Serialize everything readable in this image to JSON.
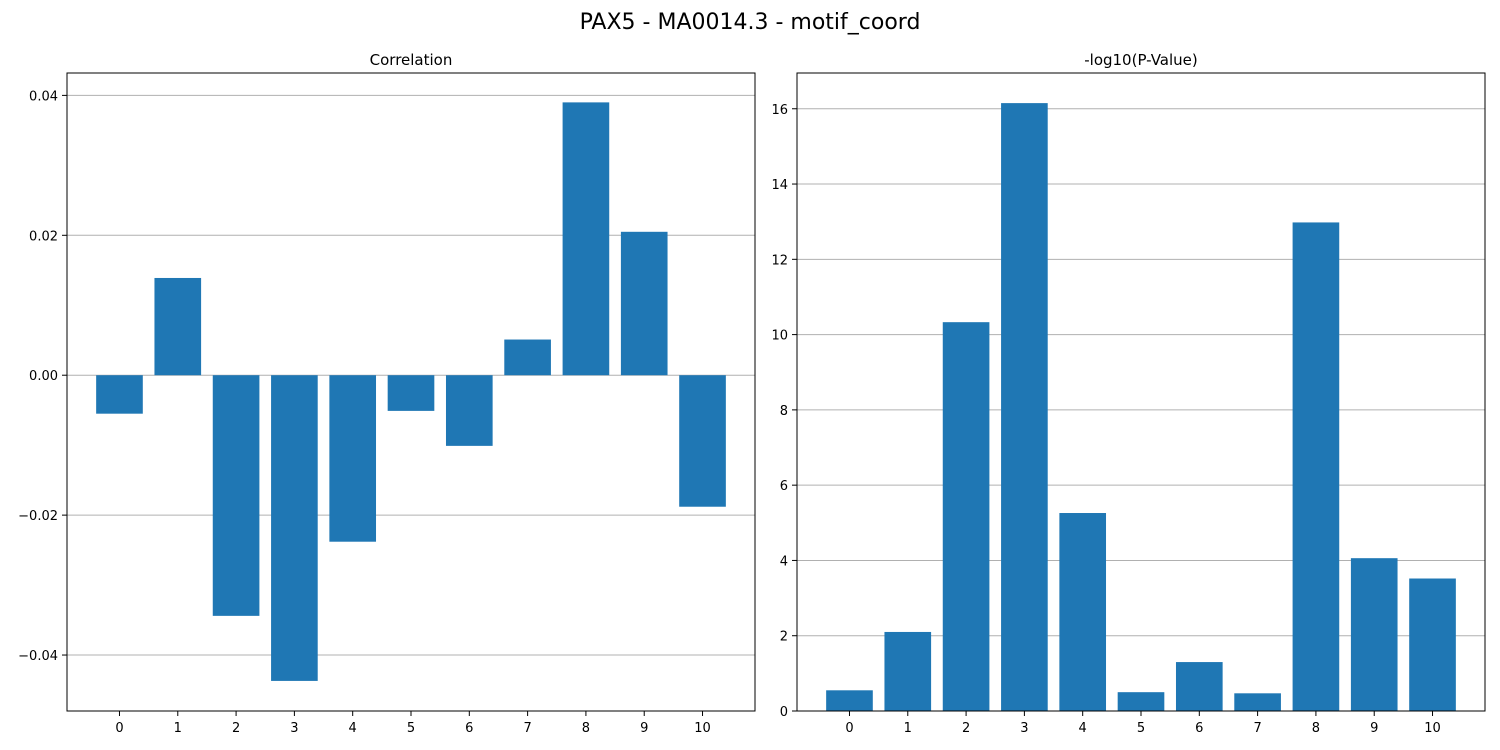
{
  "figure": {
    "title": "PAX5 - MA0014.3 - motif_coord"
  },
  "colors": {
    "bar": "#1f77b4",
    "grid": "#b0b0b0",
    "axis": "#000000"
  },
  "chart_data": [
    {
      "type": "bar",
      "title": "Correlation",
      "categories": [
        "0",
        "1",
        "2",
        "3",
        "4",
        "5",
        "6",
        "7",
        "8",
        "9",
        "10"
      ],
      "values": [
        -0.0055,
        0.0139,
        -0.0344,
        -0.0437,
        -0.0238,
        -0.0051,
        -0.0101,
        0.0051,
        0.039,
        0.0205,
        -0.0188
      ],
      "ylim": [
        -0.048,
        0.0432
      ],
      "yticks": [
        -0.04,
        -0.02,
        0.0,
        0.02,
        0.04
      ],
      "ytick_labels": [
        "−0.04",
        "−0.02",
        "0.00",
        "0.02",
        "0.04"
      ],
      "grid": "y",
      "xlabel": "",
      "ylabel": ""
    },
    {
      "type": "bar",
      "title": "-log10(P-Value)",
      "categories": [
        "0",
        "1",
        "2",
        "3",
        "4",
        "5",
        "6",
        "7",
        "8",
        "9",
        "10"
      ],
      "values": [
        0.55,
        2.1,
        10.33,
        16.15,
        5.26,
        0.5,
        1.3,
        0.47,
        12.98,
        4.06,
        3.52
      ],
      "ylim": [
        0,
        16.95
      ],
      "yticks": [
        0,
        2,
        4,
        6,
        8,
        10,
        12,
        14,
        16
      ],
      "ytick_labels": [
        "0",
        "2",
        "4",
        "6",
        "8",
        "10",
        "12",
        "14",
        "16"
      ],
      "grid": "y",
      "xlabel": "",
      "ylabel": ""
    }
  ]
}
